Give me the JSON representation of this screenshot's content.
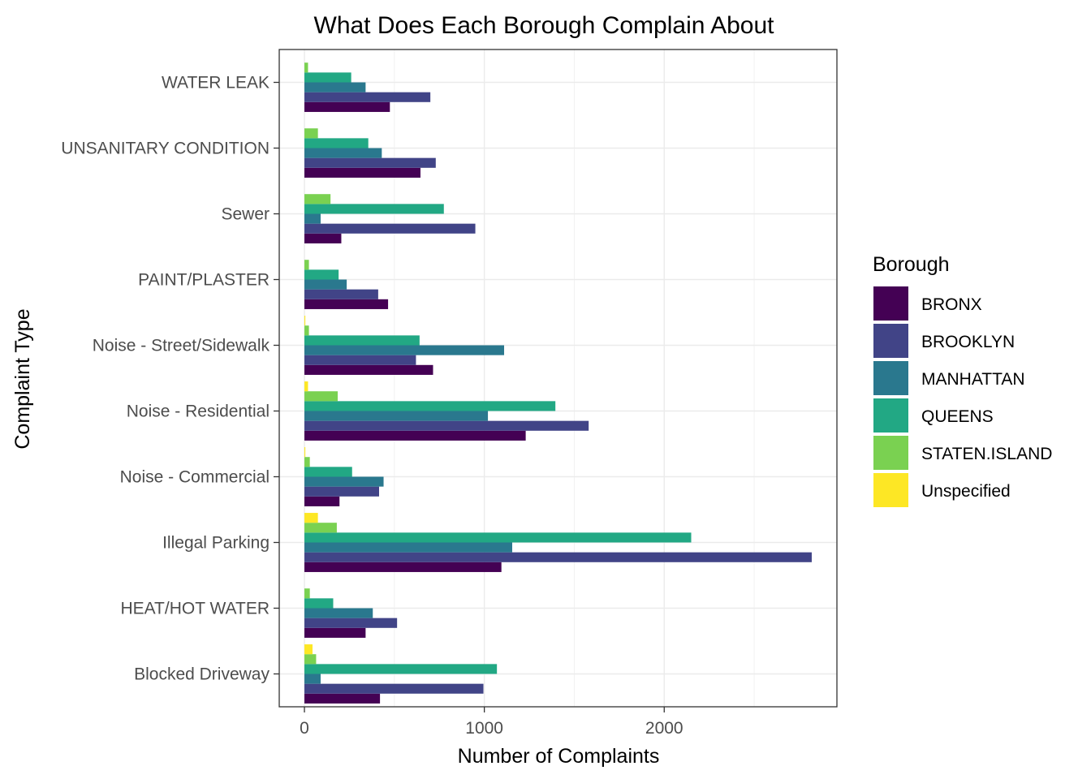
{
  "chart_data": {
    "type": "bar",
    "orientation": "horizontal",
    "title": "What Does Each Borough Complain About",
    "xlabel": "Number of Complaints",
    "ylabel": "Complaint Type",
    "xlim": [
      -140,
      2960
    ],
    "xticks": [
      0,
      1000,
      2000
    ],
    "grid": true,
    "legend_title": "Borough",
    "legend_position": "right",
    "categories": [
      "Blocked Driveway",
      "HEAT/HOT WATER",
      "Illegal Parking",
      "Noise - Commercial",
      "Noise - Residential",
      "Noise - Street/Sidewalk",
      "PAINT/PLASTER",
      "Sewer",
      "UNSANITARY CONDITION",
      "WATER LEAK"
    ],
    "series": [
      {
        "name": "BRONX",
        "color": "#440154",
        "values": [
          420,
          340,
          1095,
          195,
          1230,
          715,
          465,
          205,
          645,
          475
        ]
      },
      {
        "name": "BROOKLYN",
        "color": "#414487",
        "values": [
          995,
          515,
          2820,
          415,
          1580,
          620,
          410,
          950,
          730,
          700
        ]
      },
      {
        "name": "MANHATTAN",
        "color": "#2a788e",
        "values": [
          90,
          380,
          1155,
          440,
          1020,
          1110,
          235,
          90,
          430,
          340
        ]
      },
      {
        "name": "QUEENS",
        "color": "#22a884",
        "values": [
          1070,
          160,
          2150,
          265,
          1395,
          640,
          190,
          775,
          355,
          260
        ]
      },
      {
        "name": "STATEN.ISLAND",
        "color": "#7ad151",
        "values": [
          65,
          30,
          180,
          30,
          185,
          25,
          25,
          145,
          75,
          20
        ]
      },
      {
        "name": "Unspecified",
        "color": "#fde725",
        "values": [
          45,
          0,
          75,
          5,
          20,
          5,
          0,
          0,
          0,
          0
        ]
      }
    ]
  }
}
